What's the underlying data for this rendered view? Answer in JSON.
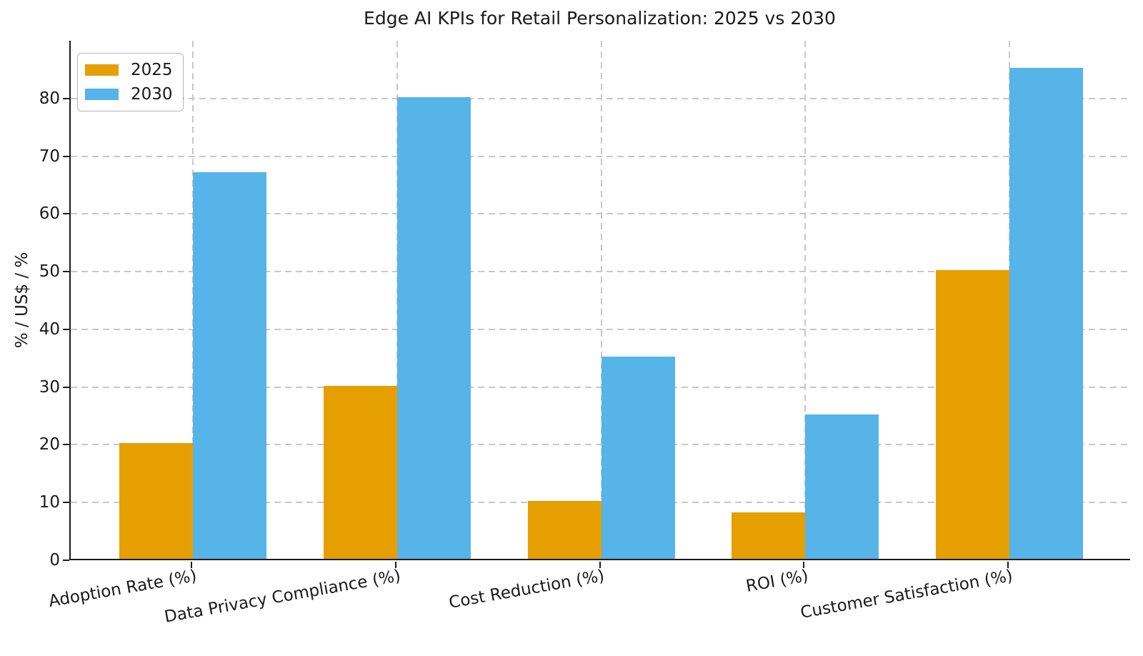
{
  "chart_data": {
    "type": "bar",
    "title": "Edge AI KPIs for Retail Personalization: 2025 vs 2030",
    "xlabel": "",
    "ylabel": "% / US$ / %",
    "categories": [
      "Adoption Rate (%)",
      "Data Privacy Compliance (%)",
      "Cost Reduction (%)",
      "ROI (%)",
      "Customer Satisfaction (%)"
    ],
    "series": [
      {
        "name": "2025",
        "color": "#E69F00",
        "values": [
          20,
          30,
          10,
          8,
          50
        ]
      },
      {
        "name": "2030",
        "color": "#56B4E9",
        "values": [
          67,
          80,
          35,
          25,
          85
        ]
      }
    ],
    "ylim": [
      0,
      90
    ],
    "yticks": [
      0,
      10,
      20,
      30,
      40,
      50,
      60,
      70,
      80
    ],
    "grid": "both, dashed, light-gray",
    "legend_position": "upper left",
    "bar_mode": "grouped"
  },
  "colors": {
    "background": "#ffffff",
    "axis": "#1a1a1a",
    "grid": "#c8c8c8",
    "series_2025": "#E69F00",
    "series_2030": "#56B4E9"
  }
}
